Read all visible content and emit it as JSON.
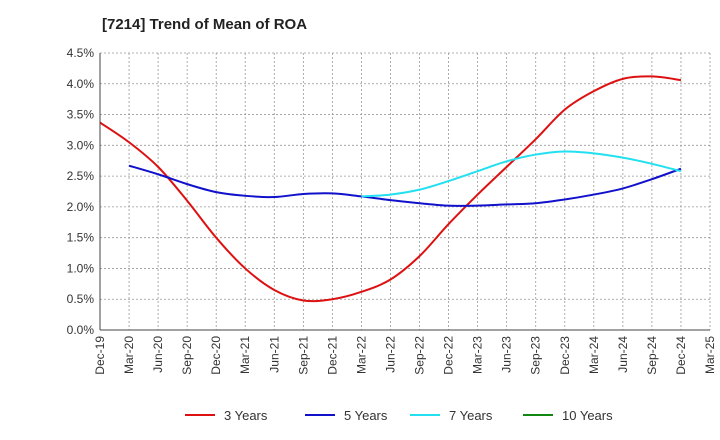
{
  "chart_data": {
    "type": "line",
    "title": "[7214]  Trend of Mean of ROA",
    "xlabel": "",
    "ylabel": "",
    "x": [
      "Dec-19",
      "Mar-20",
      "Jun-20",
      "Sep-20",
      "Dec-20",
      "Mar-21",
      "Jun-21",
      "Sep-21",
      "Dec-21",
      "Mar-22",
      "Jun-22",
      "Sep-22",
      "Dec-22",
      "Mar-23",
      "Jun-23",
      "Sep-23",
      "Dec-23",
      "Mar-24",
      "Jun-24",
      "Sep-24",
      "Dec-24",
      "Mar-25"
    ],
    "ylim": [
      0,
      4.5
    ],
    "yticks": [
      "0.0%",
      "0.5%",
      "1.0%",
      "1.5%",
      "2.0%",
      "2.5%",
      "3.0%",
      "3.5%",
      "4.0%",
      "4.5%"
    ],
    "grid": true,
    "legend_position": "bottom",
    "series": [
      {
        "name": "3 Years",
        "color": "#dd1111",
        "values": [
          3.37,
          3.05,
          2.65,
          2.1,
          1.5,
          1.0,
          0.65,
          0.48,
          0.5,
          0.62,
          0.82,
          1.2,
          1.72,
          2.2,
          2.65,
          3.1,
          3.58,
          3.88,
          4.08,
          4.12,
          4.06,
          null
        ]
      },
      {
        "name": "5 Years",
        "color": "#1111cc",
        "values": [
          null,
          2.67,
          2.53,
          2.37,
          2.24,
          2.18,
          2.16,
          2.21,
          2.22,
          2.17,
          2.11,
          2.06,
          2.02,
          2.02,
          2.04,
          2.06,
          2.12,
          2.2,
          2.3,
          2.45,
          2.62,
          null
        ]
      },
      {
        "name": "7 Years",
        "color": "#22e0f0",
        "values": [
          null,
          null,
          null,
          null,
          null,
          null,
          null,
          null,
          null,
          2.17,
          2.2,
          2.28,
          2.42,
          2.58,
          2.74,
          2.85,
          2.9,
          2.87,
          2.8,
          2.7,
          2.58,
          null
        ]
      },
      {
        "name": "10 Years",
        "color": "#118811",
        "values": [
          null,
          null,
          null,
          null,
          null,
          null,
          null,
          null,
          null,
          null,
          null,
          null,
          null,
          null,
          null,
          null,
          null,
          null,
          null,
          null,
          null,
          null
        ]
      }
    ]
  }
}
